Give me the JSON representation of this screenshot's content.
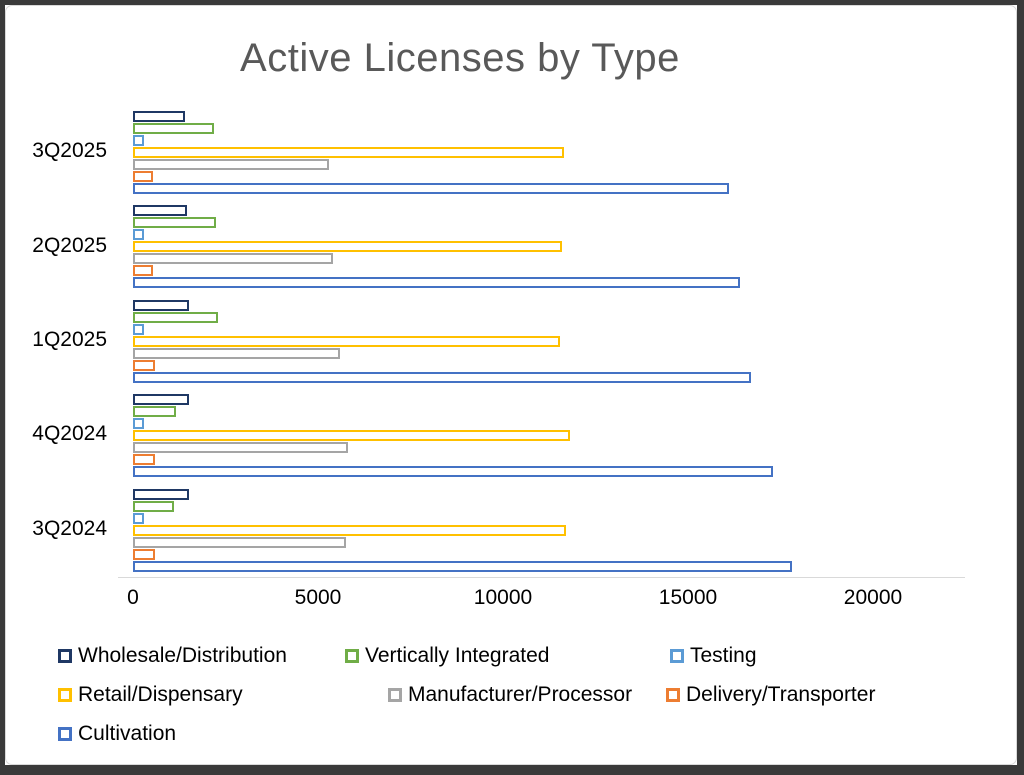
{
  "window": {
    "background": "#ffffff",
    "frame_color": "#3a3a3a",
    "inner_border_color": "#d9d9d9"
  },
  "chart_data": {
    "type": "bar",
    "orientation": "horizontal",
    "title": "Active Licenses by Type",
    "title_color": "#595959",
    "categories": [
      "3Q2025",
      "2Q2025",
      "1Q2025",
      "4Q2024",
      "3Q2024"
    ],
    "series": [
      {
        "name": "Wholesale/Distribution",
        "color": "#1F3864",
        "values": [
          1400,
          1450,
          1500,
          1500,
          1500
        ]
      },
      {
        "name": "Vertically Integrated",
        "color": "#70AD47",
        "values": [
          2200,
          2250,
          2300,
          1150,
          1100
        ]
      },
      {
        "name": "Testing",
        "color": "#5B9BD5",
        "values": [
          300,
          300,
          300,
          300,
          300
        ]
      },
      {
        "name": "Retail/Dispensary",
        "color": "#FFC000",
        "values": [
          11650,
          11600,
          11550,
          11800,
          11700
        ]
      },
      {
        "name": "Manufacturer/Processor",
        "color": "#A5A5A5",
        "values": [
          5300,
          5400,
          5600,
          5800,
          5750
        ]
      },
      {
        "name": "Delivery/Transporter",
        "color": "#ED7D31",
        "values": [
          550,
          550,
          600,
          600,
          600
        ]
      },
      {
        "name": "Cultivation",
        "color": "#4472C4",
        "values": [
          16100,
          16400,
          16700,
          17300,
          17800
        ]
      }
    ],
    "x_ticks": [
      0,
      5000,
      10000,
      15000,
      20000
    ],
    "xlim": [
      0,
      22500
    ],
    "bar_style": "outlined-hollow-white-fill",
    "grid": false,
    "legend_position": "bottom-left",
    "axis_line_color": "#d9d9d9",
    "axis_text_color": "#000000"
  }
}
